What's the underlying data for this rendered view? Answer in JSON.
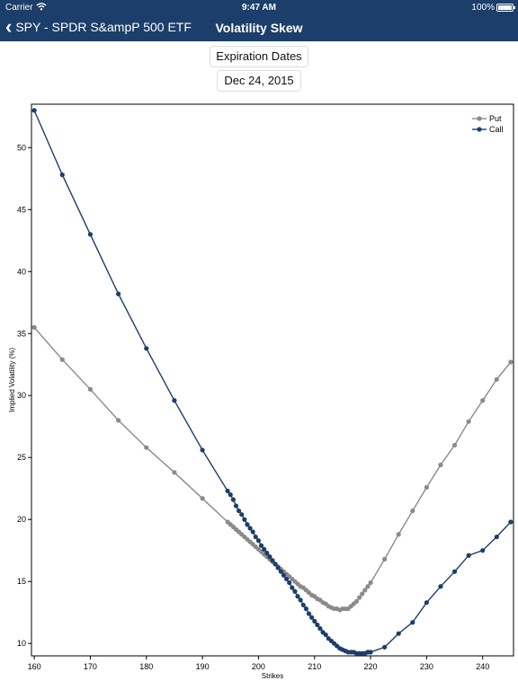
{
  "status_bar": {
    "carrier": "Carrier",
    "time": "9:47 AM",
    "battery": "100%"
  },
  "nav": {
    "back_label": "SPY - SPDR S&ampP 500 ETF",
    "title": "Volatility Skew"
  },
  "controls": {
    "expiration_label": "Expiration Dates",
    "date_label": "Dec 24, 2015"
  },
  "colors": {
    "nav_bg": "#1c3e6a",
    "put": "#8a8a8a",
    "call": "#1c3e6a"
  },
  "chart_data": {
    "type": "line",
    "title": "",
    "xlabel": "Strikes",
    "ylabel": "Implied Volatility (%)",
    "xlim": [
      159.5,
      245.5
    ],
    "ylim": [
      9,
      53.5
    ],
    "xticks": [
      160,
      170,
      180,
      190,
      200,
      210,
      220,
      230,
      240
    ],
    "yticks": [
      10,
      15,
      20,
      25,
      30,
      35,
      40,
      45,
      50
    ],
    "legend": "top-right",
    "grid": false,
    "series": [
      {
        "name": "Put",
        "x": [
          160,
          165,
          170,
          175,
          180,
          185,
          190,
          194.5,
          195,
          195.5,
          196,
          196.5,
          197,
          197.5,
          198,
          198.5,
          199,
          199.5,
          200,
          200.5,
          201,
          201.5,
          202,
          202.5,
          203,
          203.5,
          204,
          204.5,
          205,
          205.5,
          206,
          206.5,
          207,
          207.5,
          208,
          208.5,
          209,
          209.5,
          210,
          210.5,
          211,
          211.5,
          212,
          212.5,
          213,
          213.5,
          214,
          214.5,
          215,
          215.5,
          216,
          216.5,
          217,
          217.5,
          218,
          218.5,
          219,
          219.5,
          220,
          222.5,
          225,
          227.5,
          230,
          232.5,
          235,
          237.5,
          240,
          242.5,
          245
        ],
        "y": [
          35.5,
          32.9,
          30.5,
          28.0,
          25.8,
          23.8,
          21.7,
          19.8,
          19.6,
          19.4,
          19.2,
          19.0,
          18.8,
          18.6,
          18.4,
          18.2,
          18.0,
          17.8,
          17.6,
          17.4,
          17.2,
          17.0,
          16.8,
          16.6,
          16.4,
          16.2,
          16.0,
          15.8,
          15.6,
          15.4,
          15.2,
          15.0,
          14.8,
          14.6,
          14.5,
          14.3,
          14.1,
          13.9,
          13.8,
          13.6,
          13.5,
          13.3,
          13.2,
          13.0,
          12.9,
          12.8,
          12.8,
          12.7,
          12.8,
          12.8,
          12.8,
          13.0,
          13.2,
          13.4,
          13.7,
          14.0,
          14.3,
          14.6,
          14.9,
          16.8,
          18.8,
          20.7,
          22.6,
          24.4,
          26.0,
          27.9,
          29.6,
          31.3,
          32.7
        ]
      },
      {
        "name": "Call",
        "x": [
          160,
          165,
          170,
          175,
          180,
          185,
          190,
          194.5,
          195,
          195.5,
          196,
          196.5,
          197,
          197.5,
          198,
          198.5,
          199,
          199.5,
          200,
          200.5,
          201,
          201.5,
          202,
          202.5,
          203,
          203.5,
          204,
          204.5,
          205,
          205.5,
          206,
          206.5,
          207,
          207.5,
          208,
          208.5,
          209,
          209.5,
          210,
          210.5,
          211,
          211.5,
          212,
          212.5,
          213,
          213.5,
          214,
          214.5,
          215,
          215.5,
          216,
          216.5,
          217,
          217.5,
          218,
          218.5,
          219,
          219.5,
          220,
          222.5,
          225,
          227.5,
          230,
          232.5,
          235,
          237.5,
          240,
          242.5,
          245
        ],
        "y": [
          53.0,
          47.8,
          43.0,
          38.2,
          33.8,
          29.6,
          25.6,
          22.3,
          22.0,
          21.6,
          21.1,
          20.7,
          20.4,
          20.0,
          19.6,
          19.3,
          19.0,
          18.6,
          18.3,
          17.9,
          17.6,
          17.3,
          17.0,
          16.7,
          16.4,
          16.1,
          15.8,
          15.5,
          15.2,
          14.9,
          14.5,
          14.2,
          13.8,
          13.5,
          13.1,
          12.8,
          12.4,
          12.1,
          11.8,
          11.5,
          11.2,
          10.9,
          10.7,
          10.4,
          10.2,
          10.0,
          9.8,
          9.6,
          9.5,
          9.4,
          9.3,
          9.3,
          9.3,
          9.2,
          9.2,
          9.2,
          9.2,
          9.3,
          9.3,
          9.7,
          10.8,
          11.7,
          13.3,
          14.6,
          15.8,
          17.1,
          17.5,
          18.6,
          19.8
        ]
      }
    ]
  }
}
